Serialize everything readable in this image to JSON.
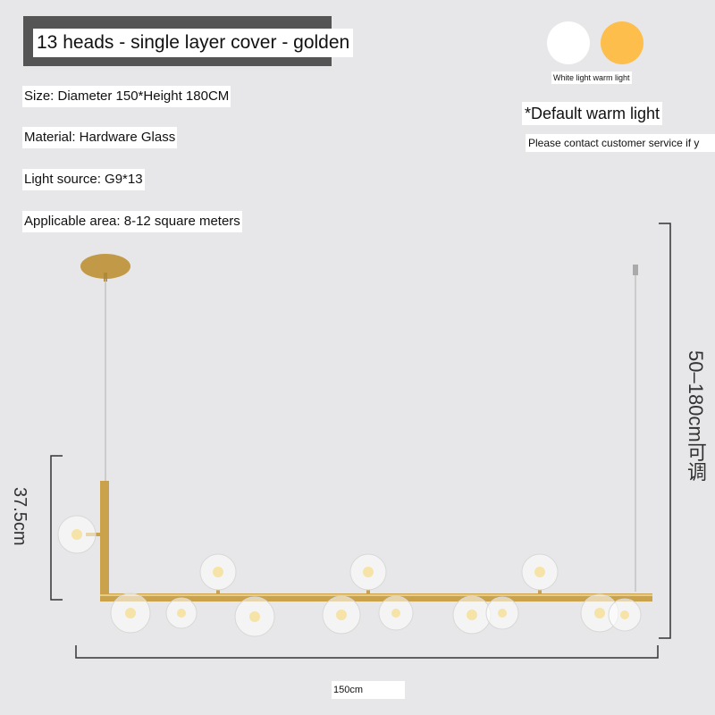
{
  "title": "13 heads - single layer cover - golden",
  "specs": {
    "size": "Size: Diameter 150*Height 180CM",
    "material": "Material: Hardware   Glass",
    "light_source": "Light source: G9*13",
    "area": "Applicable area: 8-12 square meters"
  },
  "color_options": {
    "labels": "White light warm light",
    "white_color": "#ffffff",
    "warm_color": "#fdbe4c"
  },
  "notes": {
    "default": "*Default warm light",
    "contact": "Please contact customer service if y"
  },
  "dimensions": {
    "height_range": "50–180cm可调",
    "drop": "37.5cm",
    "width": "150cm"
  },
  "product": {
    "metal_color": "#c9a24b",
    "head_count": 13
  }
}
